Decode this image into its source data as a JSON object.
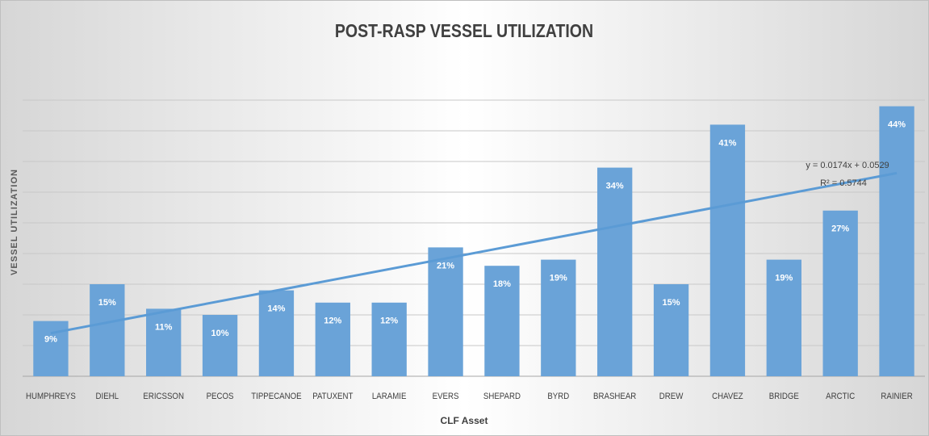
{
  "chart_data": {
    "type": "bar",
    "title": "POST-RASP VESSEL UTILIZATION",
    "x_label": "CLF Asset",
    "y_label": "VESSEL UTILIZATION",
    "categories": [
      "HUMPHREYS",
      "DIEHL",
      "ERICSSON",
      "PECOS",
      "TIPPECANOE",
      "PATUXENT",
      "LARAMIE",
      "EVERS",
      "SHEPARD",
      "BYRD",
      "BRASHEAR",
      "DREW",
      "CHAVEZ",
      "BRIDGE",
      "ARCTIC",
      "RAINIER"
    ],
    "values": [
      9,
      15,
      11,
      10,
      14,
      12,
      12,
      21,
      18,
      19,
      34,
      15,
      41,
      19,
      27,
      44
    ],
    "value_labels": [
      "9%",
      "15%",
      "11%",
      "10%",
      "14%",
      "12%",
      "12%",
      "21%",
      "18%",
      "19%",
      "34%",
      "15%",
      "41%",
      "19%",
      "27%",
      "44%"
    ],
    "color": "#6aa3d8",
    "trendline_color": "#5b9bd5",
    "ylim": [
      0,
      45
    ],
    "yticks": [
      0,
      5,
      10,
      15,
      20,
      25,
      30,
      35,
      40,
      45
    ],
    "grid": true,
    "annotations": [
      "y = 0.0174x + 0.0529",
      "R² = 0.5744"
    ]
  }
}
